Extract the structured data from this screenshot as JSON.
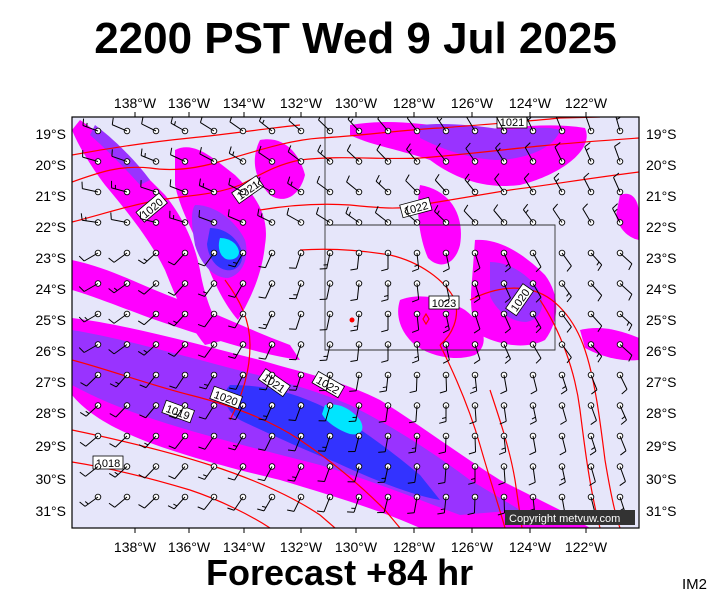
{
  "title": "2200 PST Wed 9 Jul 2025",
  "footer": "Forecast +84 hr",
  "code": "IM2",
  "copyright": "Copyright metvuw.com",
  "lon_labels": [
    "138°W",
    "136°W",
    "134°W",
    "132°W",
    "130°W",
    "128°W",
    "126°W",
    "124°W",
    "122°W"
  ],
  "lat_labels": [
    "19°S",
    "20°S",
    "21°S",
    "22°S",
    "23°S",
    "24°S",
    "25°S",
    "26°S",
    "27°S",
    "28°S",
    "29°S",
    "30°S",
    "31°S"
  ],
  "isobar_labels": [
    "1021",
    "1021",
    "1020",
    "1022",
    "1023",
    "1020",
    "1021",
    "1022",
    "1020",
    "1019",
    "1018"
  ],
  "colors": {
    "background": "#e6e6fa",
    "rain_light": "#ff00ff",
    "rain_moderate": "#9933ff",
    "rain_heavy": "#3333ff",
    "rain_intense": "#00e5ff",
    "isobar": "#ff0000",
    "wind_barb": "#000000"
  }
}
